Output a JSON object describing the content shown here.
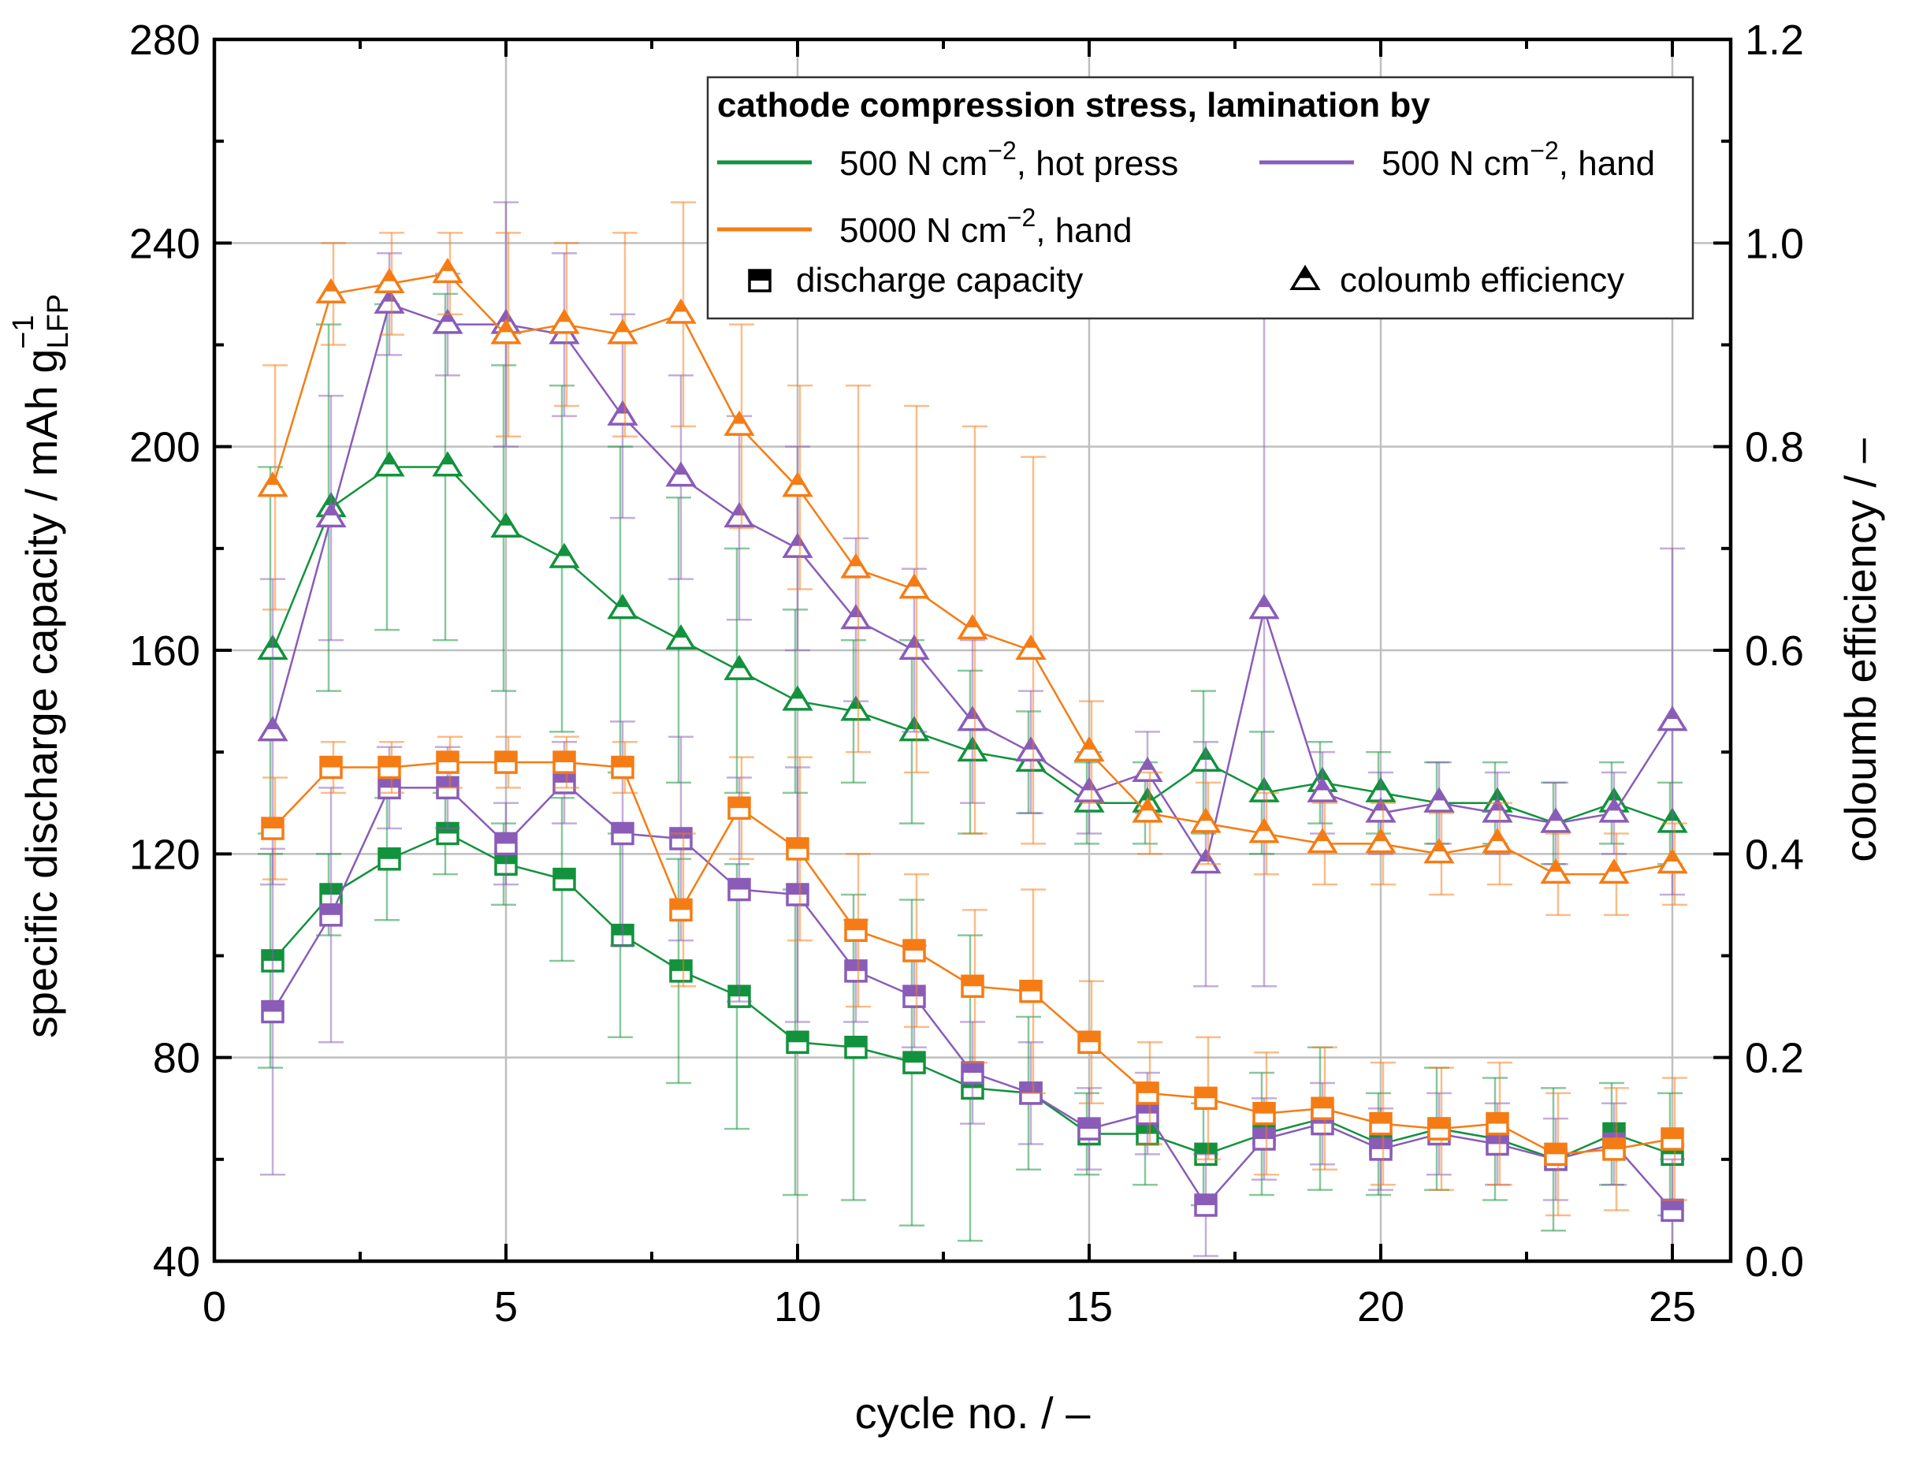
{
  "chart_data": {
    "type": "line",
    "x": [
      1,
      2,
      3,
      4,
      5,
      6,
      7,
      8,
      9,
      10,
      11,
      12,
      13,
      14,
      15,
      16,
      17,
      18,
      19,
      20,
      21,
      22,
      23,
      24,
      25
    ],
    "xlabel": "cycle no. / –",
    "ylabel": "specific discharge capacity / mAh g",
    "ylabel_sup": "−1",
    "ylabel_sub": "LFP",
    "y2label": "coloumb efficiency / –",
    "xlim": [
      0,
      26
    ],
    "ylim": [
      40,
      280
    ],
    "y2lim": [
      0.0,
      1.2
    ],
    "xticks": [
      "0",
      "5",
      "10",
      "15",
      "20",
      "25"
    ],
    "yticks": [
      "40",
      "80",
      "120",
      "160",
      "200",
      "240",
      "280"
    ],
    "y2ticks": [
      "0.0",
      "0.2",
      "0.4",
      "0.6",
      "0.8",
      "1.0",
      "1.2"
    ],
    "grid": true,
    "legend": {
      "placement": "top-right",
      "title": "cathode compression stress, lamination by",
      "entries": [
        {
          "label": "500 N cm",
          "sup": "−2",
          "rest": ", hot press",
          "color": "#12923c"
        },
        {
          "label": "500 N cm",
          "sup": "−2",
          "rest": ", hand",
          "color": "#8a5cb8"
        },
        {
          "label": "5000 N cm",
          "sup": "−2",
          "rest": ", hand",
          "color": "#f57c14"
        }
      ],
      "markers": [
        {
          "symbol": "square",
          "label": "discharge capacity"
        },
        {
          "symbol": "triangle",
          "label": "coloumb efficiency"
        }
      ]
    },
    "series": [
      {
        "color": "#12923c",
        "capacity": [
          99,
          112,
          119,
          124,
          118,
          115,
          104,
          97,
          92,
          83,
          82,
          79,
          74,
          73,
          65,
          65,
          61,
          65,
          68,
          63,
          66,
          64,
          60,
          65,
          61
        ],
        "capacity_err": [
          21,
          8,
          12,
          8,
          8,
          16,
          20,
          22,
          26,
          30,
          30,
          32,
          30,
          15,
          8,
          10,
          10,
          12,
          14,
          10,
          12,
          12,
          14,
          10,
          12
        ],
        "efficiency": [
          0.6,
          0.74,
          0.78,
          0.78,
          0.72,
          0.69,
          0.64,
          0.61,
          0.58,
          0.55,
          0.54,
          0.52,
          0.5,
          0.49,
          0.45,
          0.45,
          0.49,
          0.46,
          0.47,
          0.46,
          0.45,
          0.45,
          0.43,
          0.45,
          0.43
        ],
        "efficiency_err": [
          0.18,
          0.18,
          0.16,
          0.17,
          0.16,
          0.17,
          0.16,
          0.14,
          0.12,
          0.09,
          0.07,
          0.09,
          0.08,
          0.05,
          0.04,
          0.04,
          0.07,
          0.06,
          0.04,
          0.04,
          0.04,
          0.04,
          0.04,
          0.04,
          0.04
        ]
      },
      {
        "color": "#8a5cb8",
        "capacity": [
          89,
          108,
          133,
          133,
          122,
          134,
          124,
          123,
          113,
          112,
          97,
          92,
          77,
          73,
          66,
          69,
          51,
          64,
          67,
          62,
          65,
          63,
          60,
          63,
          50
        ],
        "capacity_err": [
          32,
          25,
          8,
          8,
          8,
          8,
          22,
          20,
          22,
          25,
          10,
          10,
          10,
          10,
          8,
          8,
          10,
          8,
          8,
          8,
          8,
          8,
          8,
          8,
          10
        ],
        "efficiency": [
          0.52,
          0.73,
          0.94,
          0.92,
          0.92,
          0.91,
          0.83,
          0.77,
          0.73,
          0.7,
          0.63,
          0.6,
          0.53,
          0.5,
          0.46,
          0.48,
          0.39,
          0.64,
          0.46,
          0.44,
          0.45,
          0.44,
          0.43,
          0.44,
          0.53
        ],
        "efficiency_err": [
          0.15,
          0.12,
          0.05,
          0.05,
          0.12,
          0.08,
          0.1,
          0.1,
          0.1,
          0.1,
          0.08,
          0.08,
          0.08,
          0.06,
          0.04,
          0.04,
          0.12,
          0.37,
          0.04,
          0.04,
          0.04,
          0.04,
          0.04,
          0.04,
          0.17
        ]
      },
      {
        "color": "#f57c14",
        "capacity": [
          125,
          137,
          137,
          138,
          138,
          138,
          137,
          109,
          129,
          121,
          105,
          101,
          94,
          93,
          83,
          73,
          72,
          69,
          70,
          67,
          66,
          67,
          61,
          62,
          64
        ],
        "capacity_err": [
          10,
          5,
          5,
          5,
          5,
          5,
          5,
          15,
          10,
          18,
          15,
          15,
          15,
          20,
          12,
          10,
          12,
          12,
          12,
          12,
          12,
          12,
          12,
          12,
          12
        ],
        "efficiency": [
          0.76,
          0.95,
          0.96,
          0.97,
          0.91,
          0.92,
          0.91,
          0.93,
          0.82,
          0.76,
          0.68,
          0.66,
          0.62,
          0.6,
          0.5,
          0.44,
          0.43,
          0.42,
          0.41,
          0.41,
          0.4,
          0.41,
          0.38,
          0.38,
          0.39
        ],
        "efficiency_err": [
          0.12,
          0.05,
          0.05,
          0.04,
          0.1,
          0.08,
          0.1,
          0.11,
          0.1,
          0.1,
          0.18,
          0.18,
          0.2,
          0.19,
          0.05,
          0.04,
          0.04,
          0.04,
          0.04,
          0.04,
          0.04,
          0.04,
          0.04,
          0.04,
          0.04
        ]
      }
    ]
  }
}
